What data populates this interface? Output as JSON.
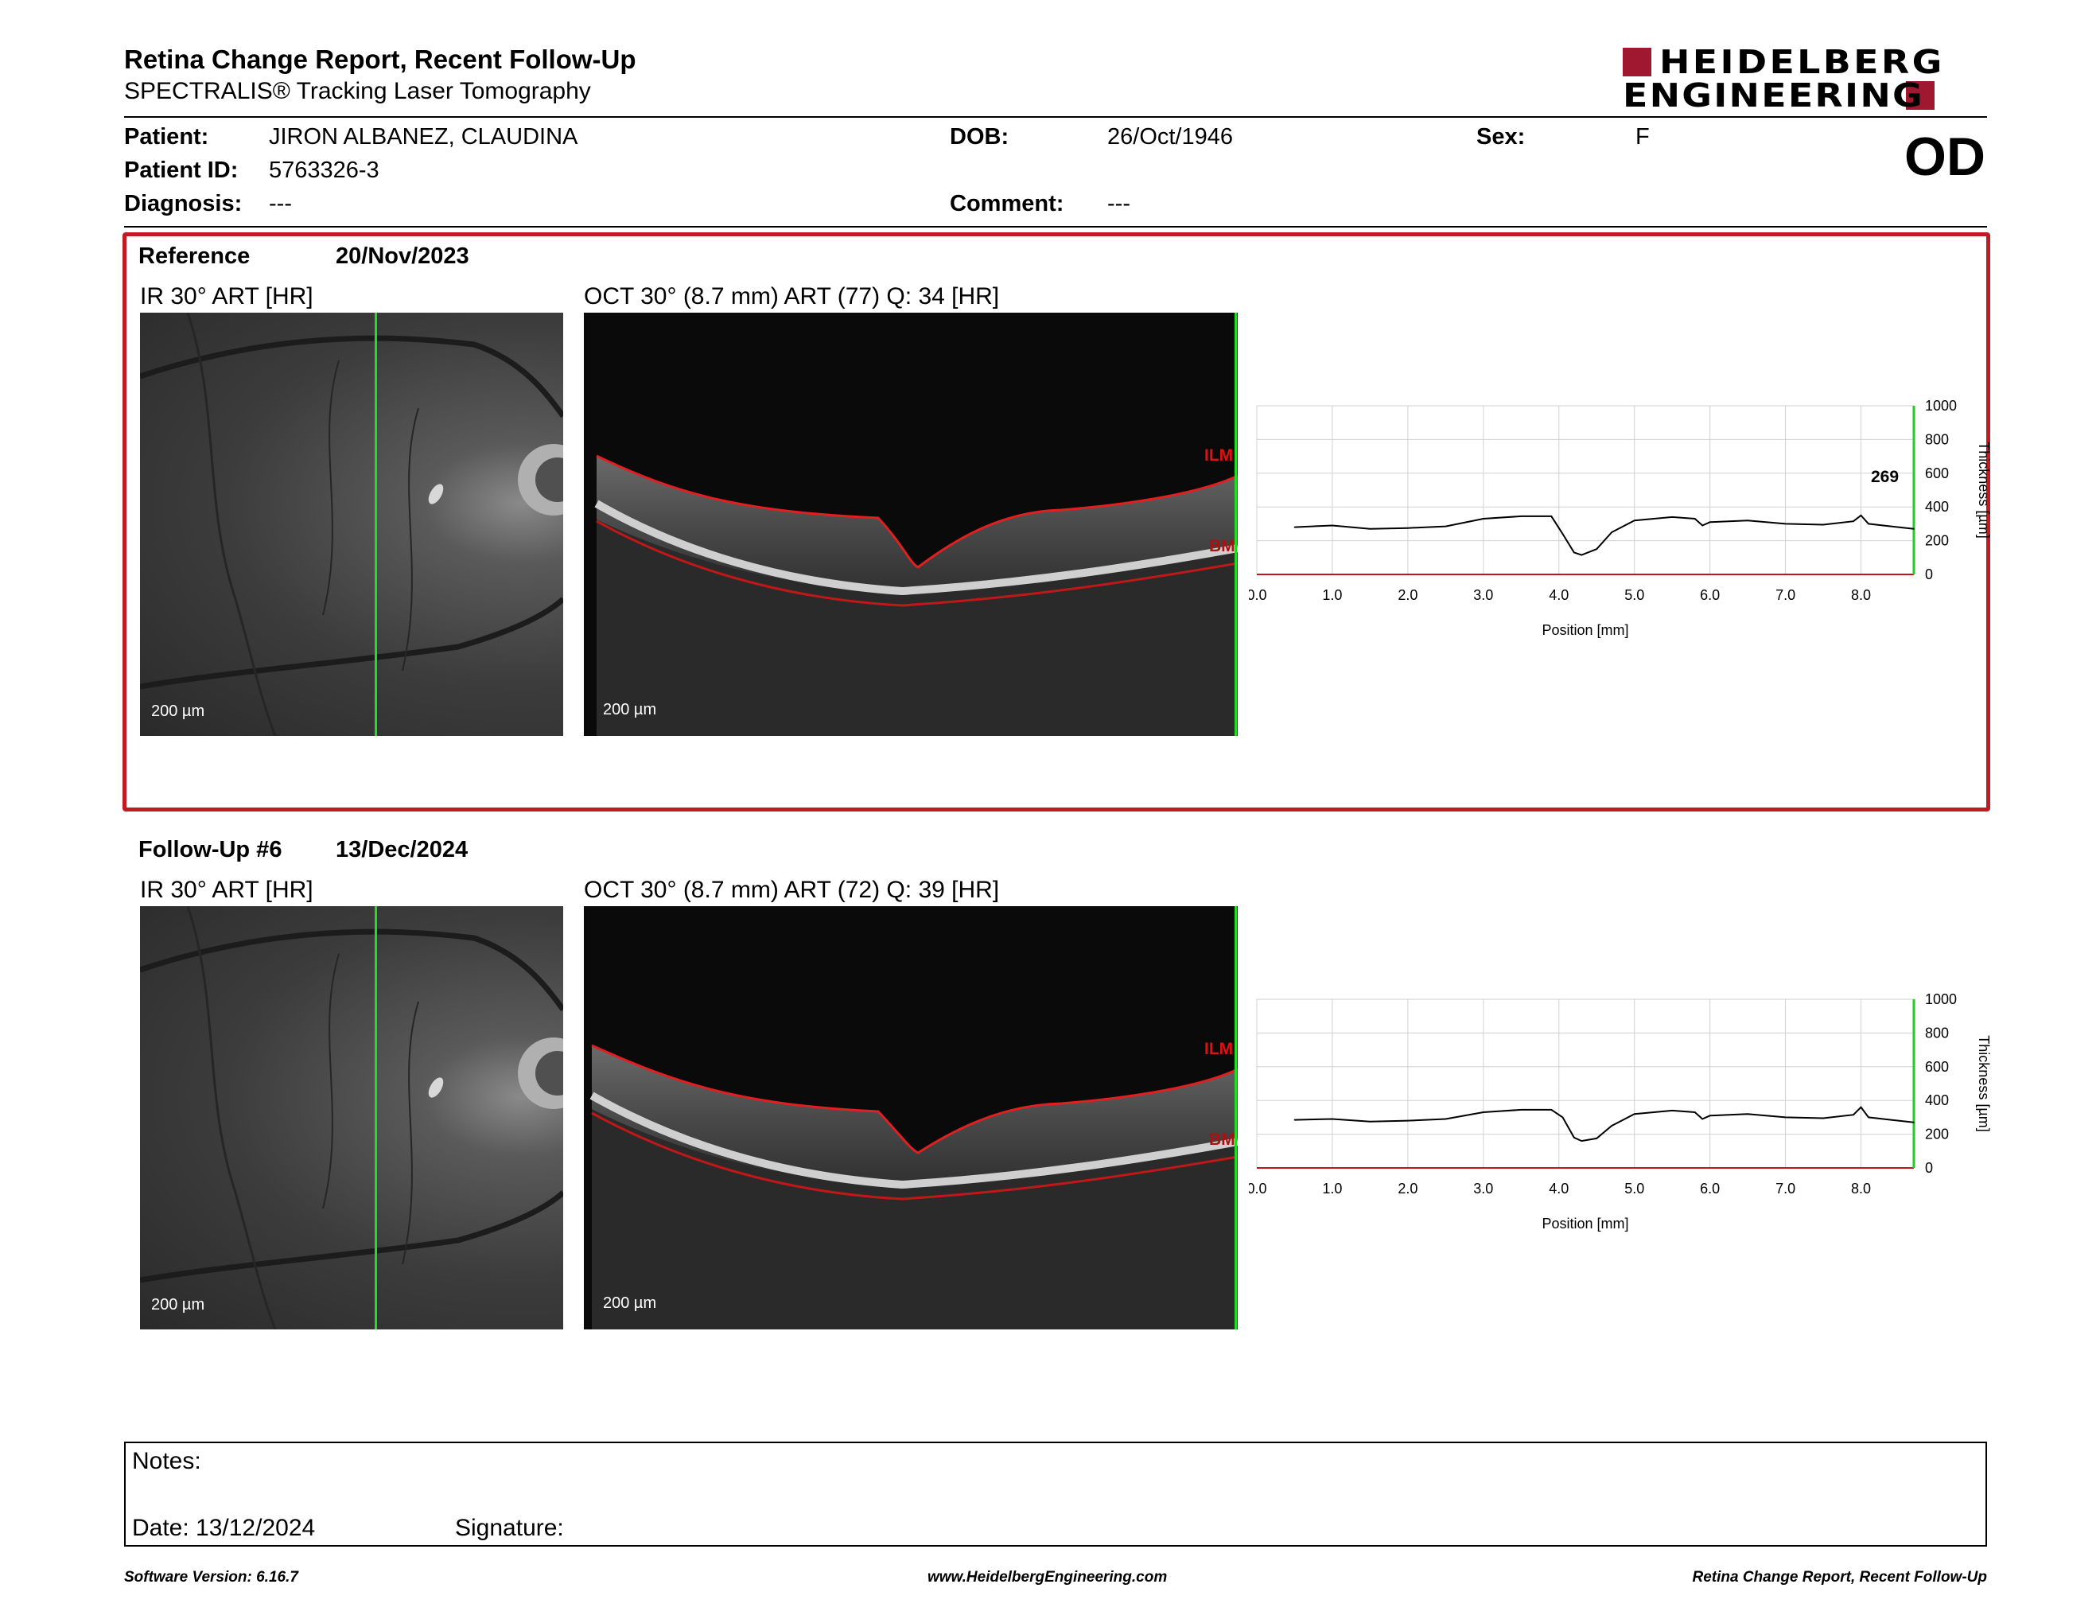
{
  "header": {
    "title": "Retina Change Report, Recent Follow-Up",
    "subtitle": "SPECTRALIS® Tracking Laser Tomography",
    "logo_line1": "HEIDELBERG",
    "logo_line2": "ENGINEERING",
    "eye": "OD"
  },
  "patient": {
    "name_label": "Patient:",
    "name": "JIRON ALBANEZ, CLAUDINA",
    "id_label": "Patient ID:",
    "id": "5763326-3",
    "diagnosis_label": "Diagnosis:",
    "diagnosis": "---",
    "dob_label": "DOB:",
    "dob": "26/Oct/1946",
    "comment_label": "Comment:",
    "comment": "---",
    "sex_label": "Sex:",
    "sex": "F"
  },
  "reference": {
    "label": "Reference",
    "date": "20/Nov/2023",
    "ir_caption": "IR 30° ART [HR]",
    "oct_caption": "OCT 30° (8.7 mm) ART (77) Q: 34 [HR]",
    "scale_ir": "200 µm",
    "scale_oct": "200 µm",
    "ilm": "ILM",
    "bm": "BM",
    "thickness_value": "269"
  },
  "followup": {
    "label": "Follow-Up #6",
    "date": "13/Dec/2024",
    "ir_caption": "IR 30° ART [HR]",
    "oct_caption": "OCT 30° (8.7 mm) ART (72) Q: 39 [HR]",
    "scale_ir": "200 µm",
    "scale_oct": "200 µm",
    "ilm": "ILM",
    "bm": "BM"
  },
  "chart_data": [
    {
      "type": "line",
      "xlabel": "Position [mm]",
      "ylabel": "Thickness [µm]",
      "xlim": [
        0,
        8.7
      ],
      "ylim": [
        0,
        1000
      ],
      "xticks": [
        "0.0",
        "1.0",
        "2.0",
        "3.0",
        "4.0",
        "5.0",
        "6.0",
        "7.0",
        "8.0"
      ],
      "yticks": [
        "0",
        "200",
        "400",
        "600",
        "800",
        "1000"
      ],
      "grid": true,
      "annotation": "269",
      "series": [
        {
          "x": [
            0.5,
            1.0,
            1.5,
            2.0,
            2.5,
            3.0,
            3.5,
            3.9,
            4.05,
            4.2,
            4.3,
            4.5,
            4.7,
            5.0,
            5.5,
            5.8,
            5.9,
            6.0,
            6.5,
            7.0,
            7.5,
            7.9,
            8.0,
            8.1,
            8.4,
            8.7
          ],
          "y": [
            280,
            290,
            270,
            275,
            285,
            330,
            345,
            345,
            240,
            130,
            115,
            150,
            250,
            320,
            340,
            330,
            290,
            310,
            320,
            300,
            295,
            315,
            350,
            300,
            285,
            270
          ]
        }
      ]
    },
    {
      "type": "line",
      "xlabel": "Position [mm]",
      "ylabel": "Thickness [µm]",
      "xlim": [
        0,
        8.7
      ],
      "ylim": [
        0,
        1000
      ],
      "xticks": [
        "0.0",
        "1.0",
        "2.0",
        "3.0",
        "4.0",
        "5.0",
        "6.0",
        "7.0",
        "8.0"
      ],
      "yticks": [
        "0",
        "200",
        "400",
        "600",
        "800",
        "1000"
      ],
      "grid": true,
      "series": [
        {
          "x": [
            0.5,
            1.0,
            1.5,
            2.0,
            2.5,
            3.0,
            3.5,
            3.9,
            4.05,
            4.2,
            4.3,
            4.5,
            4.7,
            5.0,
            5.5,
            5.8,
            5.9,
            6.0,
            6.5,
            7.0,
            7.5,
            7.9,
            8.0,
            8.1,
            8.4,
            8.7
          ],
          "y": [
            285,
            290,
            275,
            280,
            290,
            330,
            345,
            345,
            300,
            180,
            160,
            175,
            250,
            320,
            340,
            330,
            290,
            310,
            320,
            300,
            295,
            315,
            360,
            300,
            285,
            270
          ]
        }
      ]
    }
  ],
  "notes": {
    "notes_label": "Notes:",
    "date_label": "Date: 13/12/2024",
    "signature_label": "Signature:"
  },
  "footer": {
    "software": "Software Version: 6.16.7",
    "website": "www.HeidelbergEngineering.com",
    "report": "Retina Change Report, Recent Follow-Up"
  }
}
